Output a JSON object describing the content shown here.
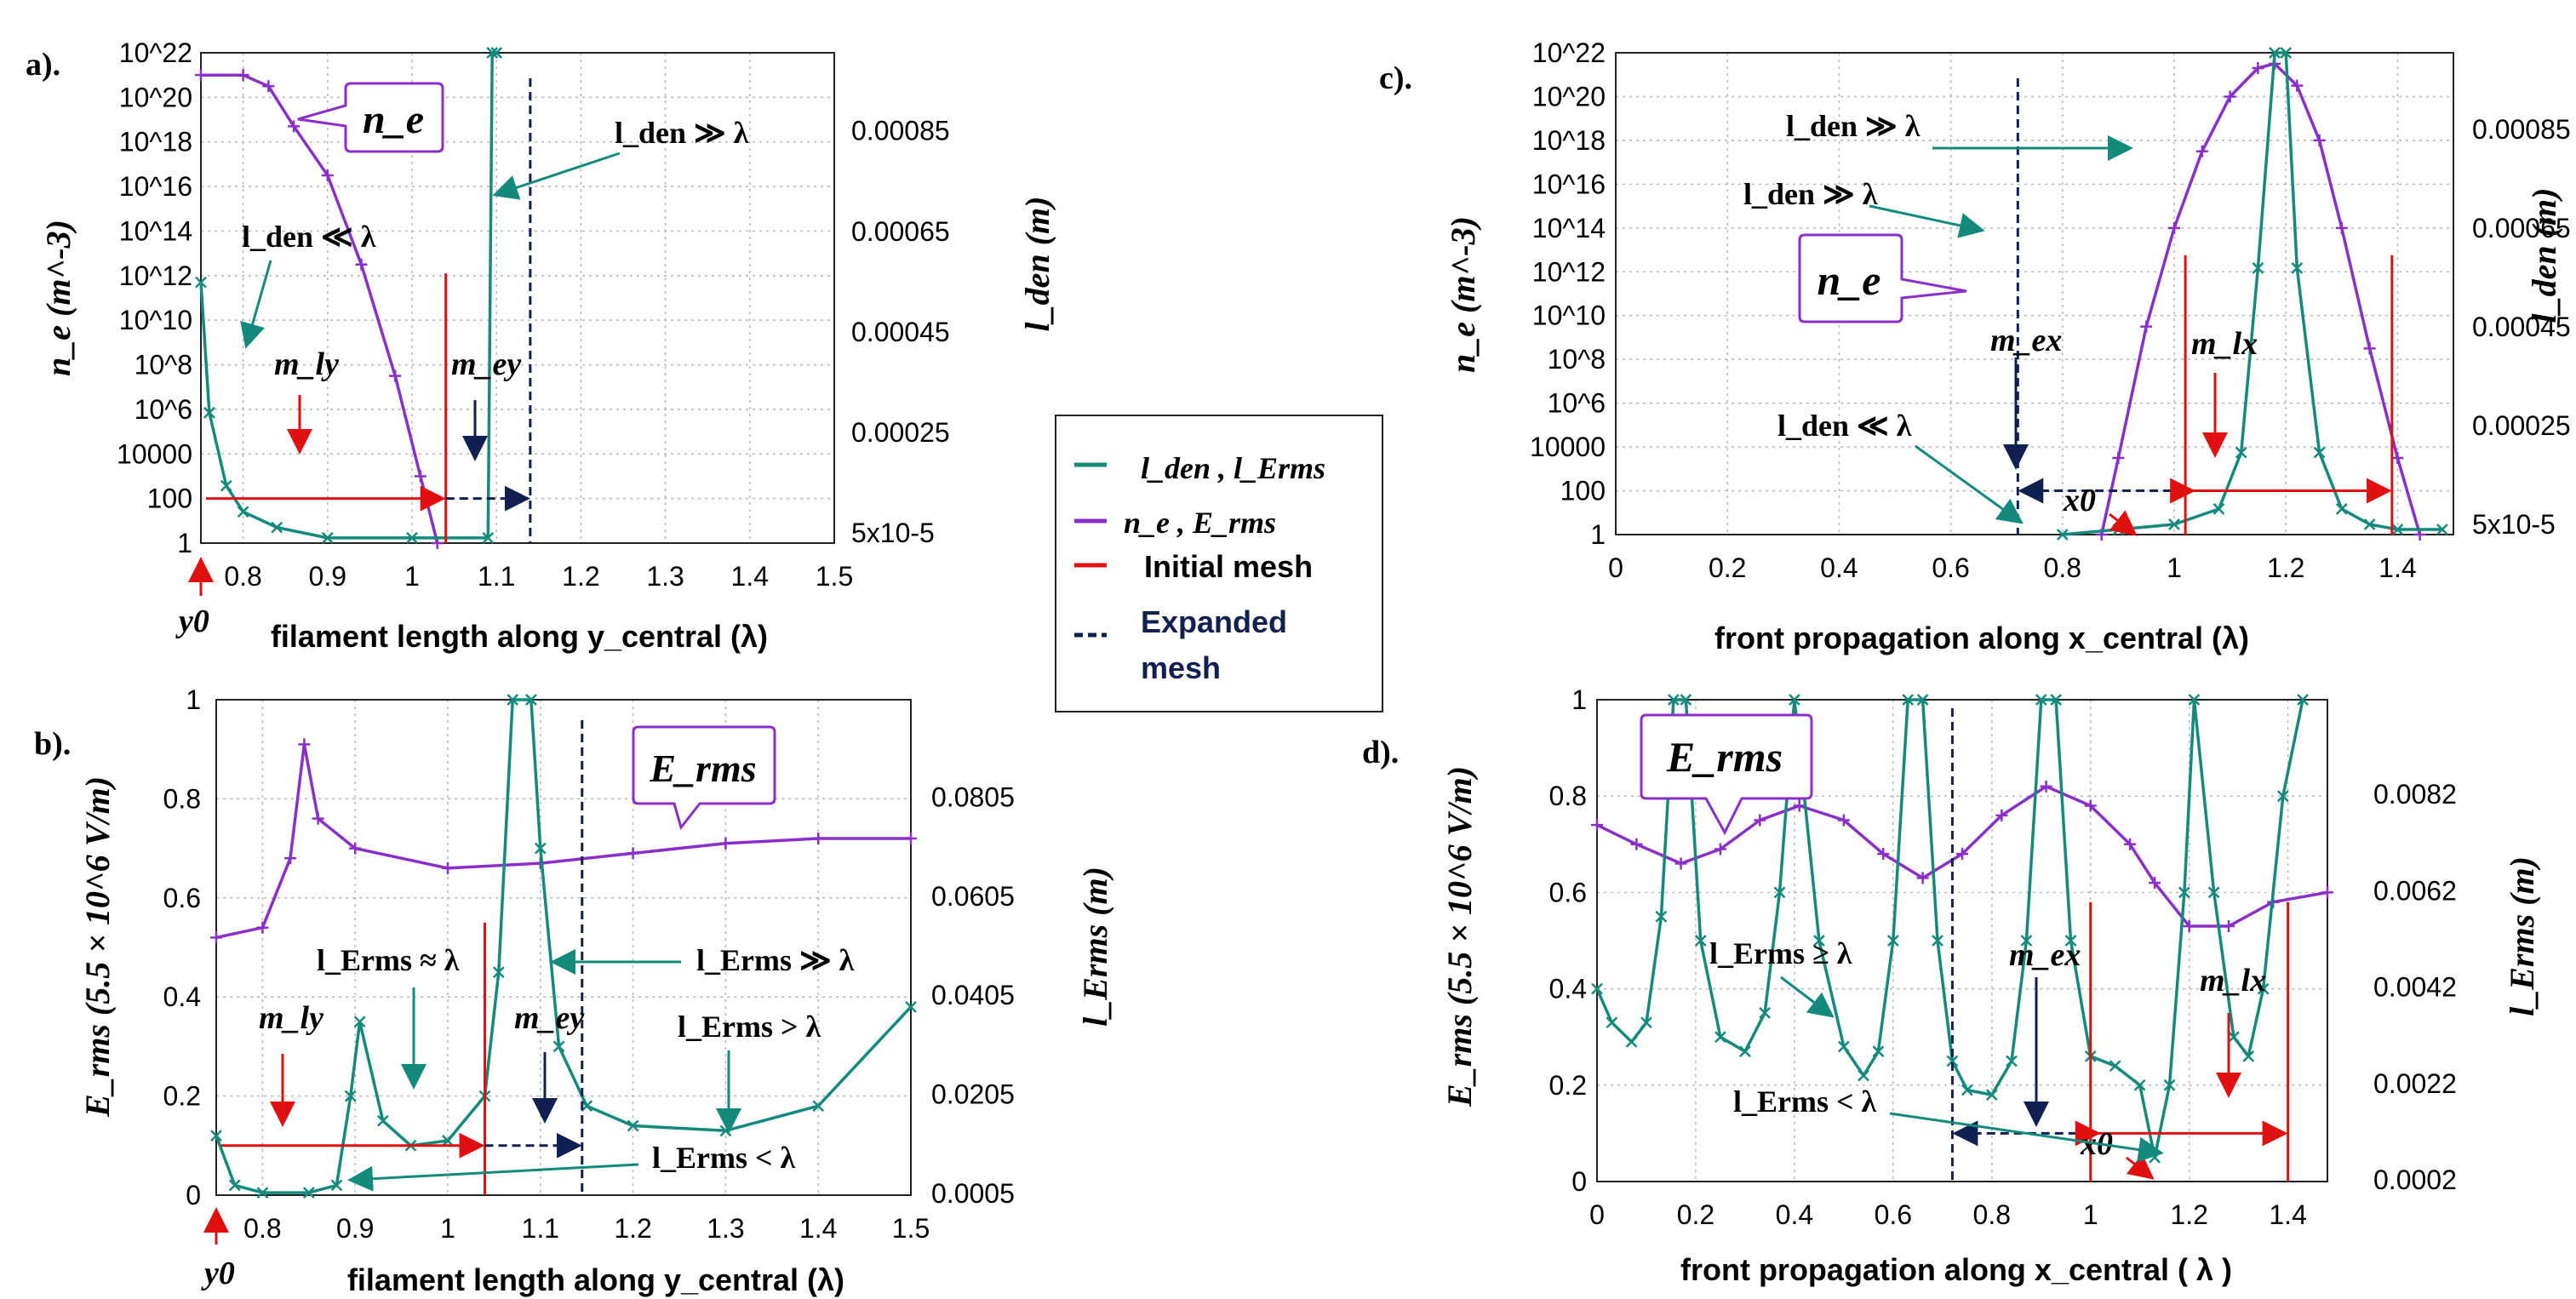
{
  "colors": {
    "teal": "#138a7c",
    "purple": "#8a2fc9",
    "red": "#e01010",
    "navy": "#102050",
    "grid": "#b8b8b8",
    "frame": "#222222"
  },
  "legend": {
    "items": [
      {
        "label": "l_den , l_Erms",
        "style": "solid",
        "color": "teal"
      },
      {
        "label": "n_e , E_rms",
        "style": "solid",
        "color": "purple"
      },
      {
        "label": "Initial mesh",
        "style": "solid",
        "color": "red"
      },
      {
        "label": "Expanded mesh",
        "style": "dashed",
        "color": "navy"
      }
    ]
  },
  "chart_data": [
    {
      "id": "a",
      "panel_label": "a).",
      "type": "line",
      "xlabel": "filament length along y_central (λ)",
      "ylabel_left": "n_e (m^-3)",
      "ylabel_right": "l_den (m)",
      "x_ticks": [
        "0.8",
        "0.9",
        "1",
        "1.1",
        "1.2",
        "1.3",
        "1.4",
        "1.5"
      ],
      "left_ticks": [
        "1",
        "100",
        "10000",
        "10^6",
        "10^8",
        "10^10",
        "10^12",
        "10^14",
        "10^16",
        "10^18",
        "10^20",
        "10^22"
      ],
      "right_ticks": [
        "5x10-5",
        "0.00025",
        "0.00045",
        "0.00065",
        "0.00085"
      ],
      "xlim": [
        0.75,
        1.5
      ],
      "ylim_left_log10": [
        0,
        22
      ],
      "ylim_right": [
        3e-05,
        0.00097
      ],
      "origin_label": "y0",
      "series": [
        {
          "name": "n_e",
          "color": "purple",
          "axis": "left",
          "x": [
            0.75,
            0.8,
            0.83,
            0.86,
            0.9,
            0.94,
            0.98,
            1.01,
            1.03
          ],
          "values": [
            21.0,
            21.0,
            20.5,
            18.7,
            16.5,
            12.5,
            7.5,
            3.0,
            0.0
          ]
        },
        {
          "name": "l_den",
          "color": "teal",
          "axis": "right",
          "x": [
            0.75,
            0.76,
            0.78,
            0.8,
            0.84,
            0.9,
            1.0,
            1.09,
            1.095,
            1.1
          ],
          "values": [
            0.00053,
            0.00028,
            0.00014,
            9e-05,
            6e-05,
            4e-05,
            4e-05,
            4e-05,
            0.00097,
            0.00097
          ]
        }
      ],
      "mesh": {
        "initial_end": 1.04,
        "expanded_end": 1.14,
        "y_log10": 2.0
      },
      "annotations": [
        {
          "text": "n_e",
          "boxed": true
        },
        {
          "text": "l_den ≫ λ"
        },
        {
          "text": "l_den ≪ λ"
        },
        {
          "text": "m_ly"
        },
        {
          "text": "m_ey"
        }
      ]
    },
    {
      "id": "b",
      "panel_label": "b).",
      "type": "line",
      "xlabel": "filament length along y_central (λ)",
      "ylabel_left": "E_rms (5.5 × 10^6 V/m)",
      "ylabel_right": "l_Erms (m)",
      "x_ticks": [
        "0.8",
        "0.9",
        "1",
        "1.1",
        "1.2",
        "1.3",
        "1.4",
        "1.5"
      ],
      "left_ticks": [
        "0",
        "0.2",
        "0.4",
        "0.6",
        "0.8",
        "1"
      ],
      "right_ticks": [
        "0.0005",
        "0.0205",
        "0.0405",
        "0.0605",
        "0.0805"
      ],
      "xlim": [
        0.75,
        1.5
      ],
      "ylim_left": [
        0,
        1
      ],
      "origin_label": "y0",
      "series": [
        {
          "name": "E_rms",
          "color": "purple",
          "axis": "left",
          "x": [
            0.75,
            0.8,
            0.83,
            0.845,
            0.86,
            0.9,
            1.0,
            1.1,
            1.2,
            1.3,
            1.4,
            1.5
          ],
          "values": [
            0.52,
            0.54,
            0.68,
            0.91,
            0.76,
            0.7,
            0.66,
            0.67,
            0.69,
            0.71,
            0.72,
            0.72
          ]
        },
        {
          "name": "l_Erms",
          "color": "teal",
          "axis": "left",
          "x": [
            0.75,
            0.77,
            0.8,
            0.85,
            0.88,
            0.895,
            0.905,
            0.93,
            0.96,
            1.0,
            1.04,
            1.055,
            1.07,
            1.09,
            1.1,
            1.12,
            1.15,
            1.2,
            1.3,
            1.4,
            1.5
          ],
          "values": [
            0.12,
            0.02,
            0.005,
            0.005,
            0.02,
            0.2,
            0.35,
            0.15,
            0.1,
            0.11,
            0.2,
            0.45,
            1.0,
            1.0,
            0.7,
            0.3,
            0.18,
            0.14,
            0.13,
            0.18,
            0.38
          ]
        }
      ],
      "mesh": {
        "initial_end": 1.04,
        "expanded_end": 1.145,
        "y_value": 0.1
      },
      "annotations": [
        {
          "text": "E_rms",
          "boxed": true
        },
        {
          "text": "l_Erms ≈ λ"
        },
        {
          "text": "l_Erms ≫ λ"
        },
        {
          "text": "l_Erms > λ"
        },
        {
          "text": "l_Erms < λ"
        },
        {
          "text": "m_ly"
        },
        {
          "text": "m_ey"
        }
      ]
    },
    {
      "id": "c",
      "panel_label": "c).",
      "type": "line",
      "xlabel": "front propagation along x_central (λ)",
      "ylabel_left": "n_e (m^-3)",
      "ylabel_right": "l_den (m)",
      "x_ticks": [
        "0",
        "0.2",
        "0.4",
        "0.6",
        "0.8",
        "1",
        "1.2",
        "1.4"
      ],
      "left_ticks": [
        "1",
        "100",
        "10000",
        "10^6",
        "10^8",
        "10^10",
        "10^12",
        "10^14",
        "10^16",
        "10^18",
        "10^20",
        "10^22"
      ],
      "right_ticks": [
        "5x10-5",
        "0.00025",
        "0.00045",
        "0.00065",
        "0.00085"
      ],
      "xlim": [
        0,
        1.5
      ],
      "ylim_left_log10": [
        0,
        22
      ],
      "ylim_right": [
        3e-05,
        0.00097
      ],
      "origin_label": "x0",
      "series": [
        {
          "name": "n_e",
          "color": "purple",
          "axis": "left",
          "x": [
            0.87,
            0.9,
            0.95,
            1.0,
            1.05,
            1.1,
            1.15,
            1.18,
            1.22,
            1.26,
            1.3,
            1.35,
            1.4,
            1.44
          ],
          "values": [
            0.0,
            3.5,
            9.5,
            14.0,
            17.5,
            20.0,
            21.3,
            21.5,
            20.5,
            18.0,
            14.0,
            8.5,
            3.5,
            0.0
          ]
        },
        {
          "name": "l_den",
          "color": "teal",
          "axis": "right",
          "x": [
            0.8,
            0.9,
            1.0,
            1.08,
            1.12,
            1.15,
            1.18,
            1.2,
            1.22,
            1.26,
            1.3,
            1.35,
            1.4,
            1.48
          ],
          "values": [
            3e-05,
            4e-05,
            5e-05,
            8e-05,
            0.00019,
            0.00055,
            0.00097,
            0.00097,
            0.00055,
            0.00019,
            8e-05,
            5e-05,
            4e-05,
            4e-05
          ]
        }
      ],
      "mesh": {
        "expanded_start": 0.72,
        "initial_start": 1.02,
        "initial_end": 1.39,
        "y_log10": 2.0
      },
      "annotations": [
        {
          "text": "n_e",
          "boxed": true
        },
        {
          "text": "l_den ≫ λ"
        },
        {
          "text": "l_den ≫ λ"
        },
        {
          "text": "l_den ≪ λ"
        },
        {
          "text": "m_ex"
        },
        {
          "text": "m_lx"
        }
      ]
    },
    {
      "id": "d",
      "panel_label": "d).",
      "type": "line",
      "xlabel": "front propagation along x_central ( λ )",
      "ylabel_left": "E_rms (5.5 × 10^6 V/m)",
      "ylabel_right": "l_Erms (m)",
      "x_ticks": [
        "0",
        "0.2",
        "0.4",
        "0.6",
        "0.8",
        "1",
        "1.2",
        "1.4"
      ],
      "left_ticks": [
        "0",
        "0.2",
        "0.4",
        "0.6",
        "0.8",
        "1"
      ],
      "right_ticks": [
        "0.0002",
        "0.0022",
        "0.0042",
        "0.0062",
        "0.0082"
      ],
      "xlim": [
        0,
        1.48
      ],
      "ylim_left": [
        0,
        1
      ],
      "origin_label": "x0",
      "series": [
        {
          "name": "E_rms",
          "color": "purple",
          "axis": "left",
          "x": [
            0,
            0.08,
            0.17,
            0.25,
            0.33,
            0.41,
            0.5,
            0.58,
            0.66,
            0.74,
            0.82,
            0.91,
            1.0,
            1.08,
            1.13,
            1.2,
            1.28,
            1.37,
            1.48
          ],
          "values": [
            0.74,
            0.7,
            0.66,
            0.69,
            0.75,
            0.78,
            0.75,
            0.68,
            0.63,
            0.68,
            0.76,
            0.82,
            0.78,
            0.7,
            0.62,
            0.53,
            0.53,
            0.58,
            0.6
          ]
        },
        {
          "name": "l_Erms",
          "color": "teal",
          "axis": "left",
          "x": [
            0,
            0.03,
            0.07,
            0.1,
            0.13,
            0.155,
            0.18,
            0.21,
            0.25,
            0.3,
            0.34,
            0.37,
            0.4,
            0.45,
            0.5,
            0.54,
            0.57,
            0.6,
            0.63,
            0.66,
            0.69,
            0.72,
            0.75,
            0.8,
            0.84,
            0.87,
            0.9,
            0.93,
            0.96,
            1.0,
            1.05,
            1.1,
            1.13,
            1.16,
            1.19,
            1.21,
            1.25,
            1.29,
            1.32,
            1.35,
            1.39,
            1.43
          ],
          "values": [
            0.4,
            0.33,
            0.29,
            0.33,
            0.55,
            1.0,
            1.0,
            0.5,
            0.3,
            0.27,
            0.35,
            0.6,
            1.0,
            0.5,
            0.28,
            0.22,
            0.27,
            0.5,
            1.0,
            1.0,
            0.5,
            0.25,
            0.19,
            0.18,
            0.25,
            0.5,
            1.0,
            1.0,
            0.5,
            0.26,
            0.24,
            0.2,
            0.05,
            0.2,
            0.6,
            1.0,
            0.6,
            0.3,
            0.26,
            0.4,
            0.8,
            1.0
          ]
        }
      ],
      "mesh": {
        "expanded_start": 0.72,
        "initial_start": 1.0,
        "initial_end": 1.4,
        "y_value": 0.1
      },
      "annotations": [
        {
          "text": "E_rms",
          "boxed": true
        },
        {
          "text": "l_Erms ≥ λ"
        },
        {
          "text": "l_Erms < λ"
        },
        {
          "text": "m_ex"
        },
        {
          "text": "m_lx"
        }
      ]
    }
  ]
}
